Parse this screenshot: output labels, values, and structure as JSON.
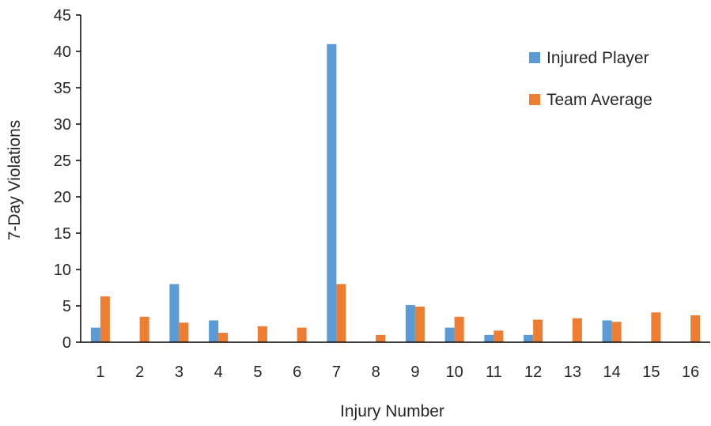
{
  "chart_data": {
    "type": "bar",
    "title": "",
    "xlabel": "Injury Number",
    "ylabel": "7-Day Violations",
    "ylim": [
      0,
      45
    ],
    "yticks": [
      0,
      5,
      10,
      15,
      20,
      25,
      30,
      35,
      40,
      45
    ],
    "grid": false,
    "legend_position": "top-right",
    "categories": [
      "1",
      "2",
      "3",
      "4",
      "5",
      "6",
      "7",
      "8",
      "9",
      "10",
      "11",
      "12",
      "13",
      "14",
      "15",
      "16"
    ],
    "series": [
      {
        "name": "Injured Player",
        "color": "#5b9bd5",
        "values": [
          2,
          0,
          8,
          3,
          0,
          0,
          41,
          0,
          5.1,
          2,
          1,
          1,
          0,
          3,
          0,
          0
        ]
      },
      {
        "name": "Team Average",
        "color": "#ed7d31",
        "values": [
          6.3,
          3.5,
          2.7,
          1.3,
          2.2,
          2,
          8,
          1,
          4.9,
          3.5,
          1.6,
          3.1,
          3.3,
          2.8,
          4.1,
          3.7
        ]
      }
    ]
  }
}
